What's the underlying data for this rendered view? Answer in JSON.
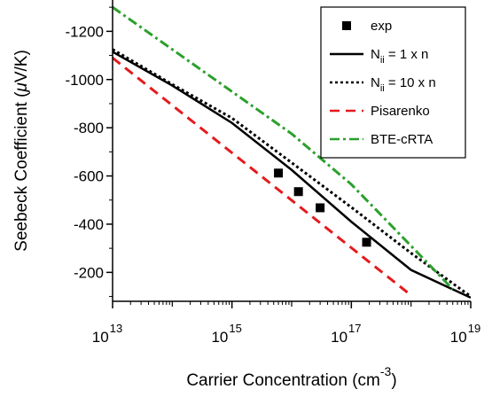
{
  "chart_data": {
    "type": "line",
    "title": "",
    "xlabel": "Carrier Concentration (cm",
    "xlabel_sup": "-3",
    "xlabel_close": ")",
    "ylabel": "Seebeck Coefficient (",
    "ylabel_mu": "μ",
    "ylabel_unit": "V/K)",
    "x_scale": "log",
    "xlim": [
      10000000000000.0,
      1e+19
    ],
    "ylim": [
      -80,
      -1330
    ],
    "x_ticks": [
      {
        "value": 10000000000000.0,
        "base": "10",
        "exp": "13"
      },
      {
        "value": 1000000000000000.0,
        "base": "10",
        "exp": "15"
      },
      {
        "value": 1e+17,
        "base": "10",
        "exp": "17"
      },
      {
        "value": 1e+19,
        "base": "10",
        "exp": "19"
      }
    ],
    "y_ticks": [
      {
        "value": -200,
        "label": "-200"
      },
      {
        "value": -400,
        "label": "-400"
      },
      {
        "value": -600,
        "label": "-600"
      },
      {
        "value": -800,
        "label": "-800"
      },
      {
        "value": -1000,
        "label": "-1000"
      },
      {
        "value": -1200,
        "label": "-1200"
      }
    ],
    "legend_position": "top-right",
    "grid": false,
    "series": [
      {
        "key": "exp",
        "name": "exp",
        "style": "marker-square",
        "color": "#000000",
        "points": [
          [
            6000000000000000.0,
            -612
          ],
          [
            1.3e+16,
            -535
          ],
          [
            3e+16,
            -468
          ],
          [
            1.8e+17,
            -325
          ]
        ]
      },
      {
        "key": "nii1",
        "name": "N",
        "name_sub": "ii",
        "name_rest": " = 1 x n",
        "style": "solid",
        "color": "#000000",
        "points": [
          [
            10000000000000.0,
            -1115
          ],
          [
            100000000000000.0,
            -975
          ],
          [
            1000000000000000.0,
            -820
          ],
          [
            1e+16,
            -625
          ],
          [
            1e+17,
            -410
          ],
          [
            1e+18,
            -210
          ],
          [
            1e+19,
            -95
          ]
        ]
      },
      {
        "key": "nii10",
        "name": "N",
        "name_sub": "ii",
        "name_rest": " = 10 x n",
        "style": "dotted",
        "color": "#000000",
        "points": [
          [
            10000000000000.0,
            -1125
          ],
          [
            100000000000000.0,
            -980
          ],
          [
            1000000000000000.0,
            -840
          ],
          [
            1e+16,
            -655
          ],
          [
            1e+17,
            -470
          ],
          [
            1e+18,
            -280
          ],
          [
            1e+19,
            -100
          ]
        ]
      },
      {
        "key": "pisarenko",
        "name": "Pisarenko",
        "style": "dashed",
        "color": "#e41a1c",
        "points": [
          [
            10000000000000.0,
            -1090
          ],
          [
            1e+18,
            -105
          ]
        ]
      },
      {
        "key": "bte",
        "name": "BTE-cRTA",
        "style": "dashdot",
        "color": "#2ca02c",
        "points": [
          [
            10000000000000.0,
            -1300
          ],
          [
            1e+16,
            -775
          ],
          [
            1e+17,
            -565
          ],
          [
            1e+18,
            -310
          ],
          [
            5e+18,
            -130
          ]
        ]
      }
    ]
  }
}
